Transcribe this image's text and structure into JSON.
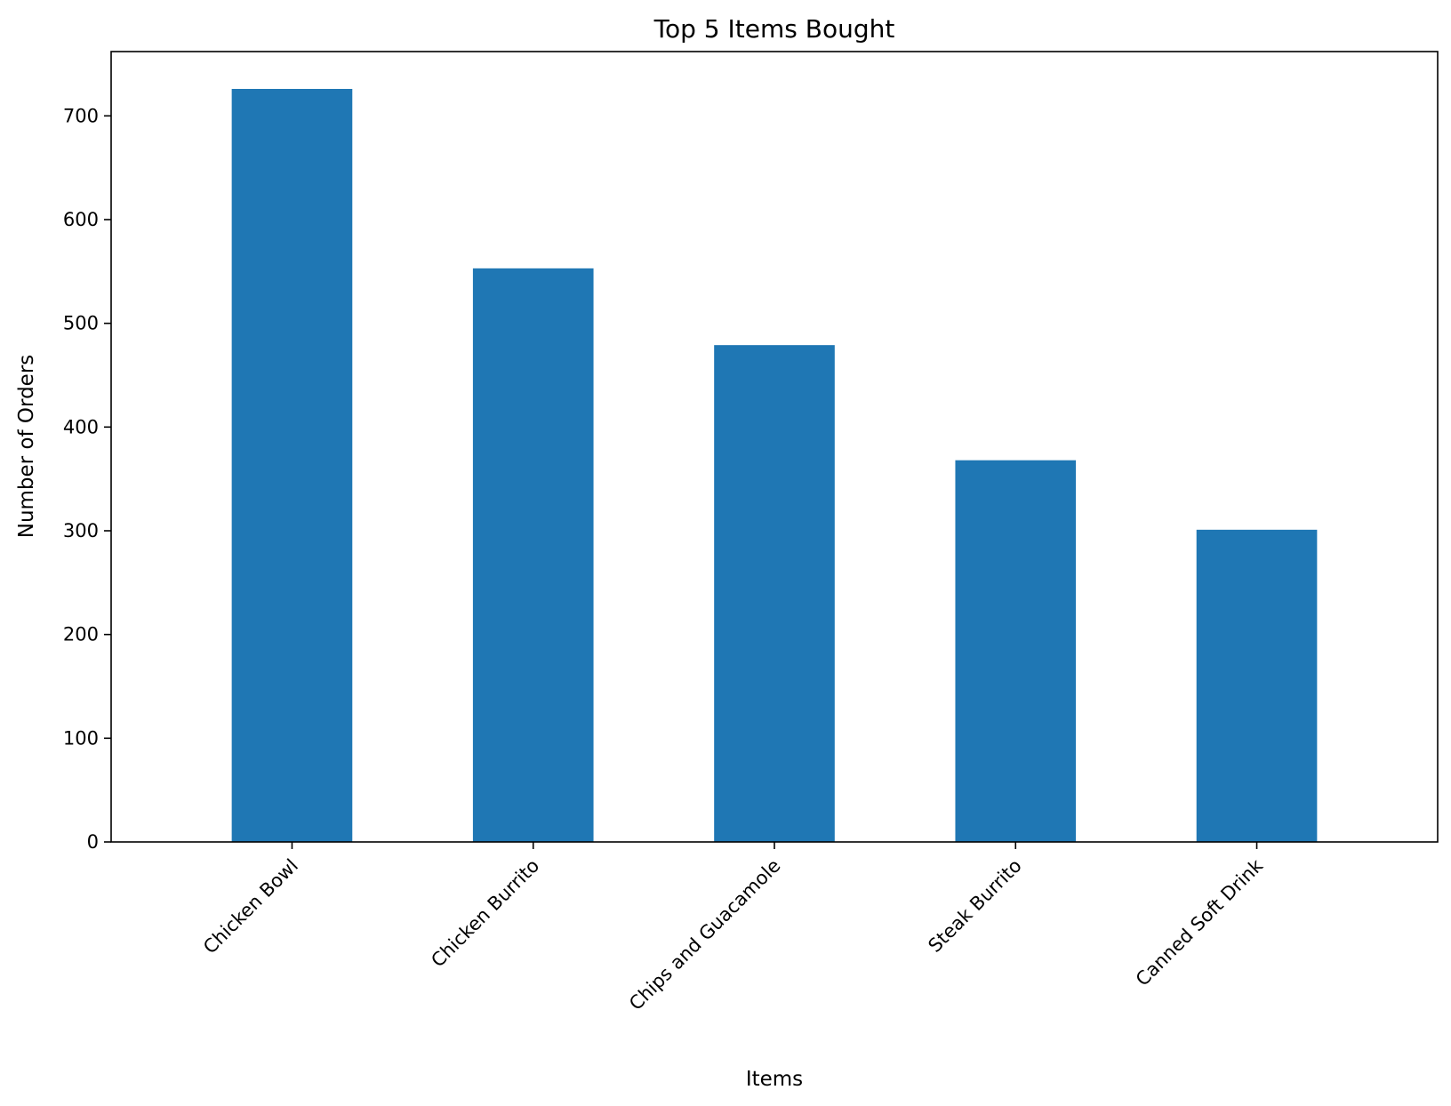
{
  "chart_data": {
    "type": "bar",
    "title": "Top 5 Items Bought",
    "xlabel": "Items",
    "ylabel": "Number of Orders",
    "categories": [
      "Chicken Bowl",
      "Chicken Burrito",
      "Chips and Guacamole",
      "Steak Burrito",
      "Canned Soft Drink"
    ],
    "values": [
      726,
      553,
      479,
      368,
      301
    ],
    "ylim": [
      0,
      762
    ],
    "yticks": [
      0,
      100,
      200,
      300,
      400,
      500,
      600,
      700
    ],
    "grid": false,
    "bar_color": "#1f77b4"
  }
}
